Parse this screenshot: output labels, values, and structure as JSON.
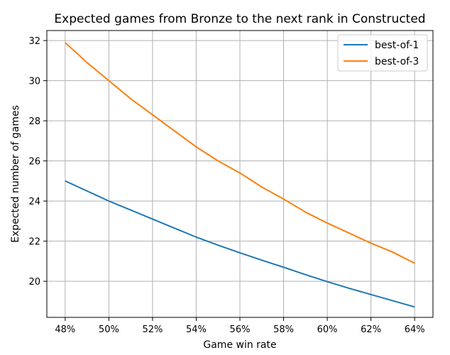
{
  "chart_data": {
    "type": "line",
    "title": "Expected games from Bronze to the next rank in Constructed",
    "xlabel": "Game win rate",
    "ylabel": "Expected number of games",
    "x": [
      0.48,
      0.49,
      0.5,
      0.51,
      0.52,
      0.53,
      0.54,
      0.55,
      0.56,
      0.57,
      0.58,
      0.59,
      0.6,
      0.61,
      0.62,
      0.63,
      0.64
    ],
    "xlim": [
      0.4716,
      0.6484
    ],
    "ylim": [
      18.2,
      32.5
    ],
    "xticks": [
      0.48,
      0.5,
      0.52,
      0.54,
      0.56,
      0.58,
      0.6,
      0.62,
      0.64
    ],
    "xtick_labels": [
      "48%",
      "50%",
      "52%",
      "54%",
      "56%",
      "58%",
      "60%",
      "62%",
      "64%"
    ],
    "yticks": [
      20,
      22,
      24,
      26,
      28,
      30,
      32
    ],
    "ytick_labels": [
      "20",
      "22",
      "24",
      "26",
      "28",
      "30",
      "32"
    ],
    "grid": true,
    "legend_position": "top-right",
    "series": [
      {
        "name": "best-of-1",
        "color": "#1f77b4",
        "values": [
          25.0,
          24.5,
          24.0,
          23.55,
          23.1,
          22.65,
          22.2,
          21.8,
          21.42,
          21.05,
          20.7,
          20.33,
          19.98,
          19.65,
          19.34,
          19.03,
          18.72
        ]
      },
      {
        "name": "best-of-3",
        "color": "#ff7f0e",
        "values": [
          31.9,
          30.9,
          30.0,
          29.1,
          28.3,
          27.5,
          26.7,
          26.0,
          25.4,
          24.7,
          24.1,
          23.45,
          22.9,
          22.4,
          21.9,
          21.45,
          20.9
        ]
      }
    ]
  }
}
